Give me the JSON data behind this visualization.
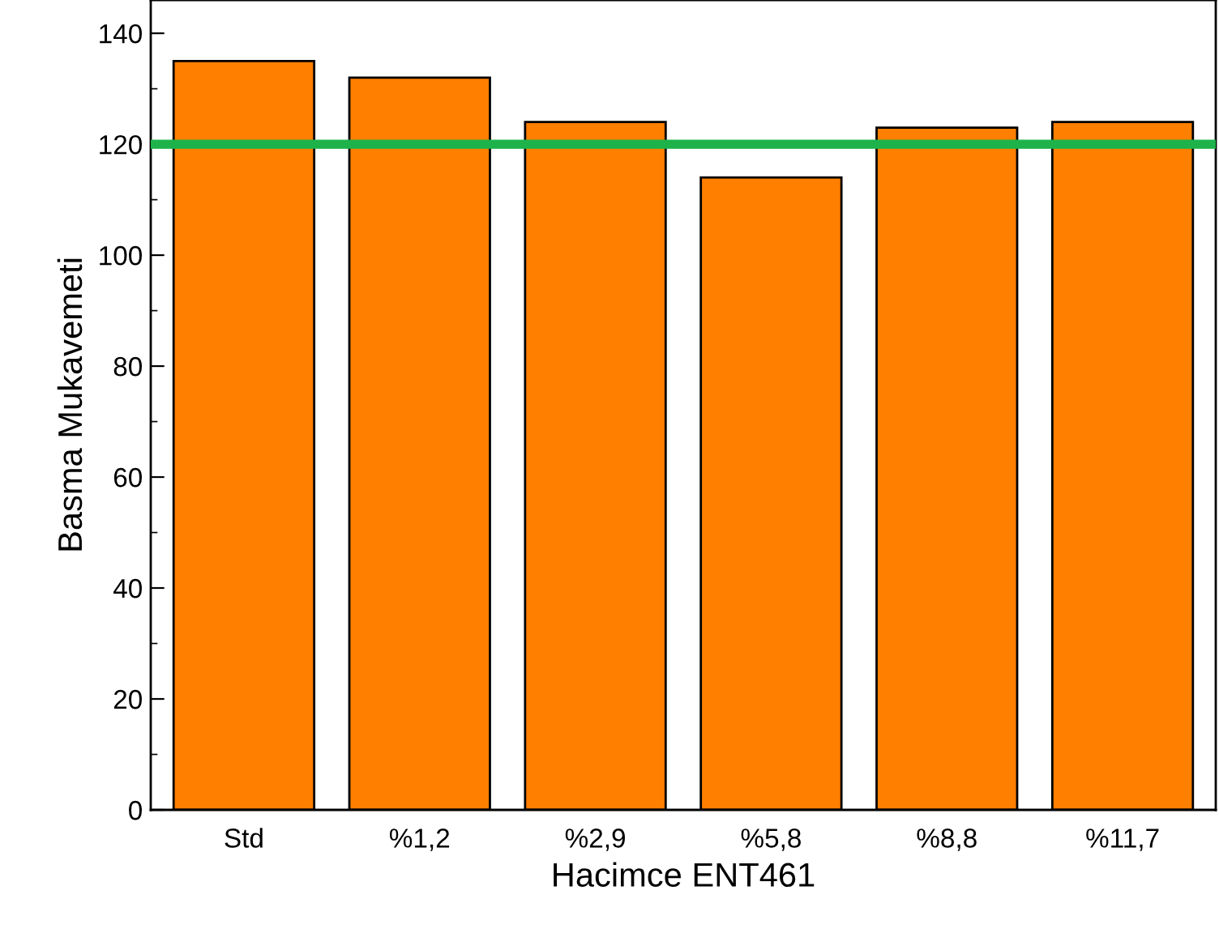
{
  "chart_data": {
    "type": "bar",
    "xlabel": "Hacimce ENT461",
    "ylabel": "Basma Mukavemeti",
    "categories": [
      "Std",
      "%1,2",
      "%2,9",
      "%5,8",
      "%8,8",
      "%11,7"
    ],
    "values": [
      135,
      132,
      124,
      114,
      123,
      124
    ],
    "color": "#ff7f00",
    "ylim": [
      0,
      146
    ],
    "yticks": [
      0,
      20,
      40,
      60,
      80,
      100,
      120,
      140
    ],
    "grid": false,
    "ref_lines": [
      {
        "axis": "y",
        "value": 120,
        "color": "#1db34a",
        "line_style": "solid"
      }
    ]
  }
}
